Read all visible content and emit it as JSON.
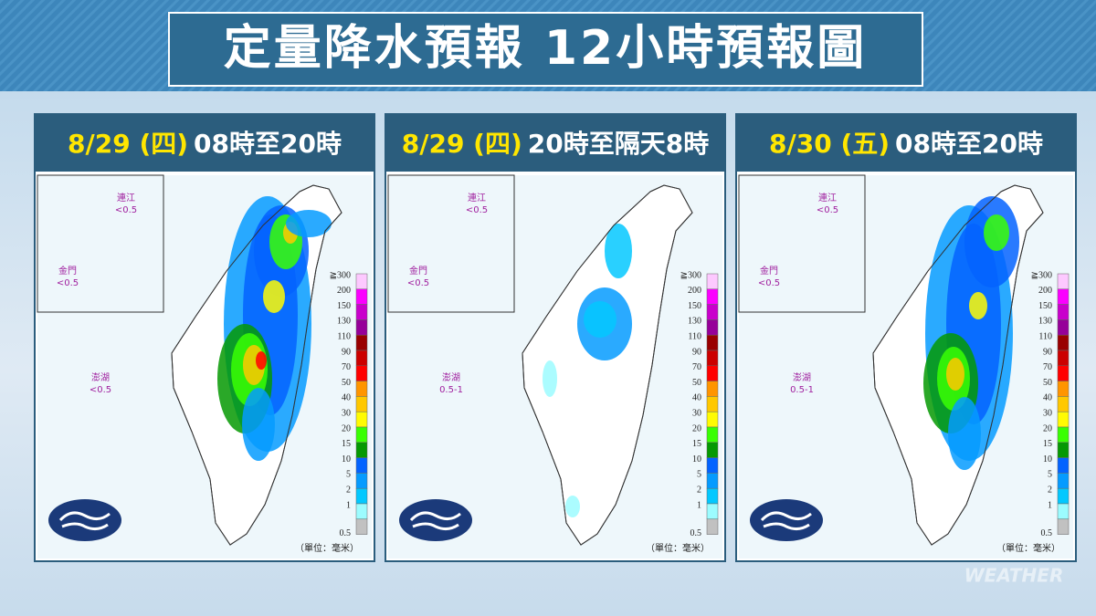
{
  "header": {
    "title": "定量降水預報 12小時預報圖"
  },
  "panels": [
    {
      "date": "8/29 (四)",
      "period": "08時至20時",
      "islands": [
        {
          "name": "連江",
          "value": "<0.5"
        },
        {
          "name": "金門",
          "value": "<0.5"
        },
        {
          "name": "澎湖",
          "value": "<0.5"
        }
      ]
    },
    {
      "date": "8/29 (四)",
      "period": "20時至隔天8時",
      "islands": [
        {
          "name": "連江",
          "value": "<0.5"
        },
        {
          "name": "金門",
          "value": "<0.5"
        },
        {
          "name": "澎湖",
          "value": "0.5-1"
        }
      ]
    },
    {
      "date": "8/30 (五)",
      "period": "08時至20時",
      "islands": [
        {
          "name": "連江",
          "value": "<0.5"
        },
        {
          "name": "金門",
          "value": "<0.5"
        },
        {
          "name": "澎湖",
          "value": "0.5-1"
        }
      ]
    }
  ],
  "legend": {
    "levels": [
      {
        "label": "≧300",
        "color": "#fdc9ff"
      },
      {
        "label": "200",
        "color": "#fb00ff"
      },
      {
        "label": "150",
        "color": "#c900cc"
      },
      {
        "label": "130",
        "color": "#960099"
      },
      {
        "label": "110",
        "color": "#990000"
      },
      {
        "label": "90",
        "color": "#cc0000"
      },
      {
        "label": "70",
        "color": "#ff0000"
      },
      {
        "label": "50",
        "color": "#ff9500"
      },
      {
        "label": "40",
        "color": "#ffc800"
      },
      {
        "label": "30",
        "color": "#fffb03"
      },
      {
        "label": "20",
        "color": "#39ff03"
      },
      {
        "label": "15",
        "color": "#059902"
      },
      {
        "label": "10",
        "color": "#0363ff"
      },
      {
        "label": "5",
        "color": "#059bff"
      },
      {
        "label": "2",
        "color": "#03c8ff"
      },
      {
        "label": "1",
        "color": "#9cfcff"
      },
      {
        "label": "0.5",
        "color": "#c1c1c1"
      }
    ],
    "unit": "（單位：毫米）"
  },
  "watermark": "WEATHER"
}
